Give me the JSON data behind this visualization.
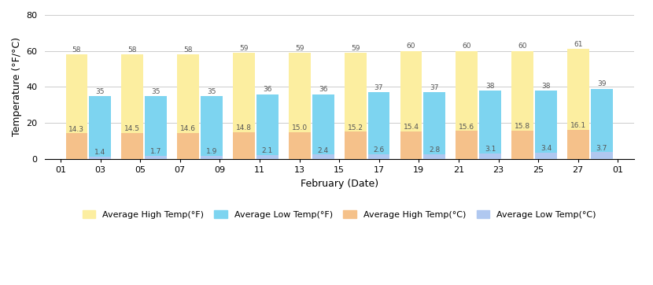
{
  "x_labels": [
    "01",
    "03",
    "05",
    "07",
    "09",
    "11",
    "13",
    "15",
    "17",
    "19",
    "21",
    "23",
    "25",
    "27",
    "01"
  ],
  "high_f": [
    58,
    58,
    58,
    59,
    59,
    59,
    60,
    60,
    60,
    61
  ],
  "low_f": [
    35,
    35,
    35,
    36,
    36,
    37,
    37,
    38,
    38,
    39
  ],
  "high_c": [
    14.3,
    14.5,
    14.6,
    14.8,
    15.0,
    15.2,
    15.4,
    15.6,
    15.8,
    16.1
  ],
  "low_c": [
    1.4,
    1.7,
    1.9,
    2.1,
    2.4,
    2.6,
    2.8,
    3.1,
    3.4,
    3.7
  ],
  "color_high_f": "#FCEEA0",
  "color_low_f": "#7DD4F0",
  "color_high_c": "#F5C18A",
  "color_low_c": "#B0C8F0",
  "ylabel": "Temperature (°F/°C)",
  "xlabel": "February (Date)",
  "ylim": [
    0,
    80
  ],
  "yticks": [
    0,
    20,
    40,
    60,
    80
  ],
  "legend_labels": [
    "Average High Temp(°F)",
    "Average Low Temp(°F)",
    "Average High Temp(°C)",
    "Average Low Temp(°C)"
  ]
}
